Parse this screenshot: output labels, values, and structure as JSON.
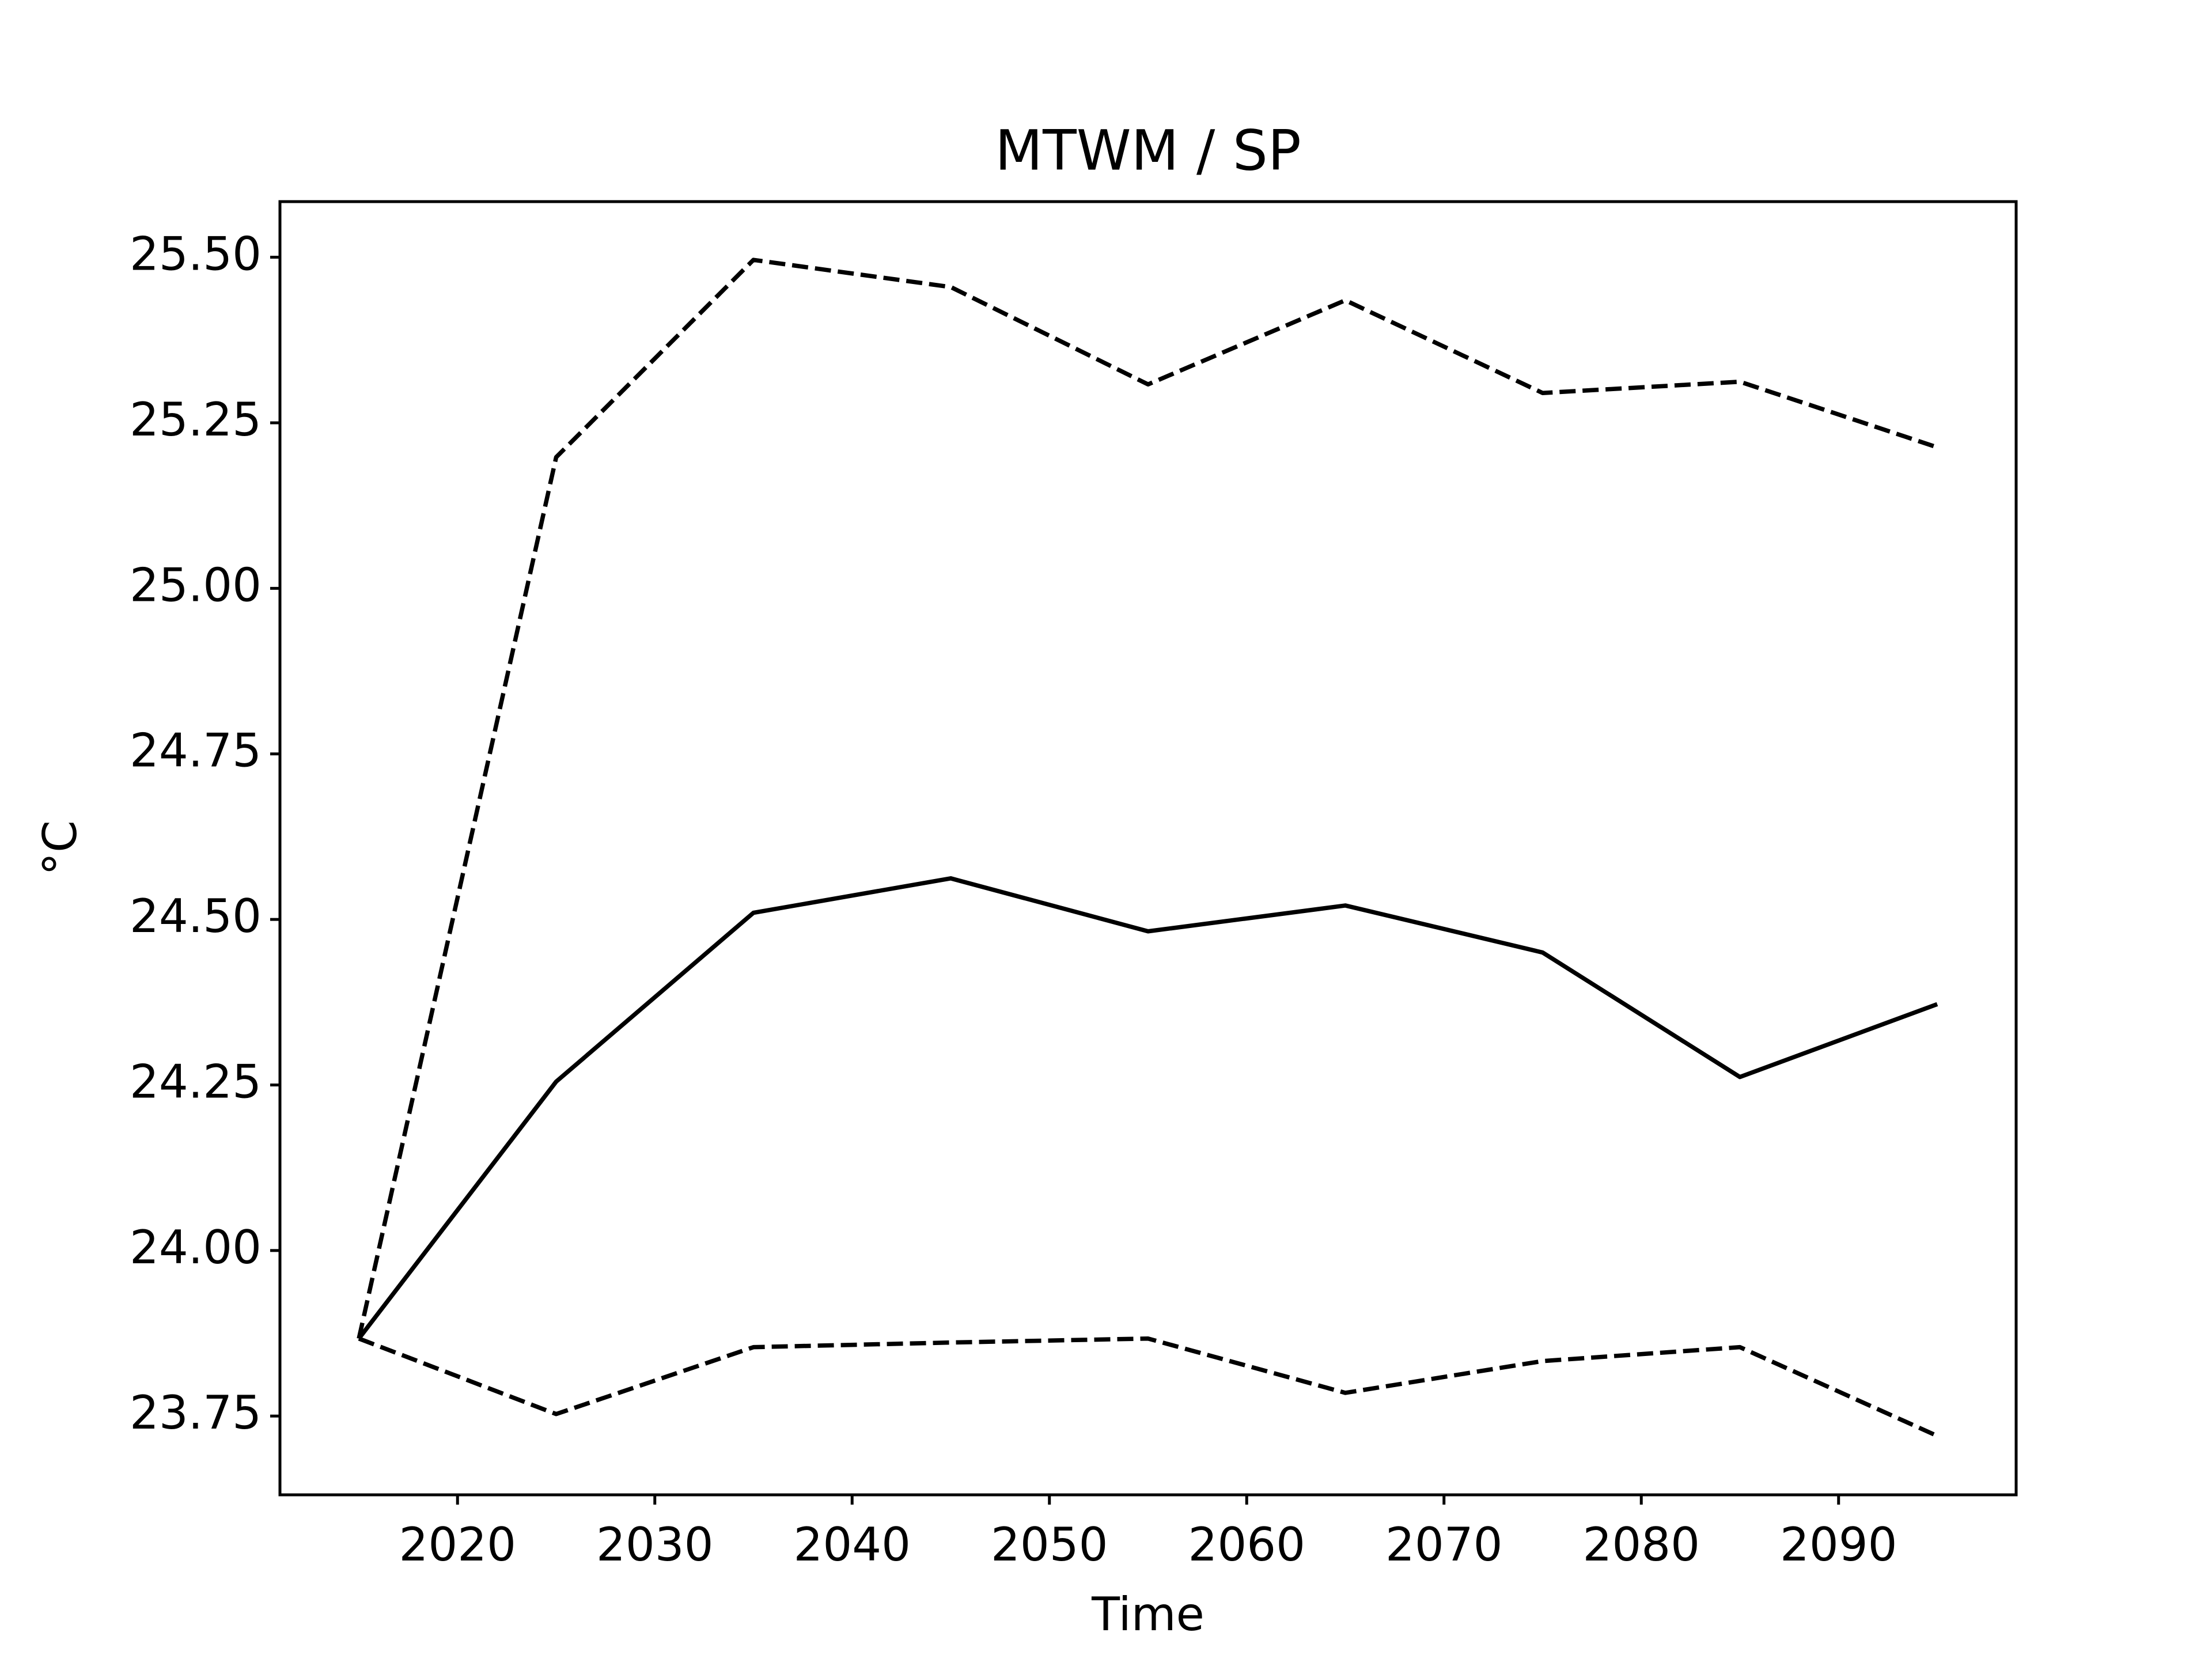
{
  "chart_data": {
    "type": "line",
    "title": "MTWM / SP",
    "xlabel": "Time",
    "ylabel": "°C",
    "x": [
      2015,
      2025,
      2035,
      2045,
      2055,
      2065,
      2075,
      2085,
      2095
    ],
    "series": [
      {
        "color": "#000000",
        "linestyle": "dashed",
        "values": [
          23.867,
          25.198,
          25.496,
          25.455,
          25.308,
          25.435,
          25.295,
          25.312,
          25.213
        ]
      },
      {
        "color": "#000000",
        "linestyle": "solid",
        "values": [
          23.867,
          24.255,
          24.51,
          24.562,
          24.482,
          24.521,
          24.45,
          24.262,
          24.372
        ]
      },
      {
        "color": "#000000",
        "linestyle": "dashed",
        "values": [
          23.867,
          23.753,
          23.854,
          23.861,
          23.867,
          23.785,
          23.833,
          23.854,
          23.72
        ]
      }
    ],
    "xlim": [
      2011,
      2099
    ],
    "xticks": [
      2020,
      2030,
      2040,
      2050,
      2060,
      2070,
      2080,
      2090
    ],
    "ylim": [
      23.631,
      25.584
    ],
    "yticks": [
      23.75,
      {
        "value": 24,
        "label": "24.00"
      },
      24.25,
      {
        "value": 24.5,
        "label": "24.50"
      },
      24.75,
      {
        "value": 25,
        "label": "25.00"
      },
      25.25,
      {
        "value": 25.5,
        "label": "25.50"
      }
    ],
    "grid": false
  }
}
